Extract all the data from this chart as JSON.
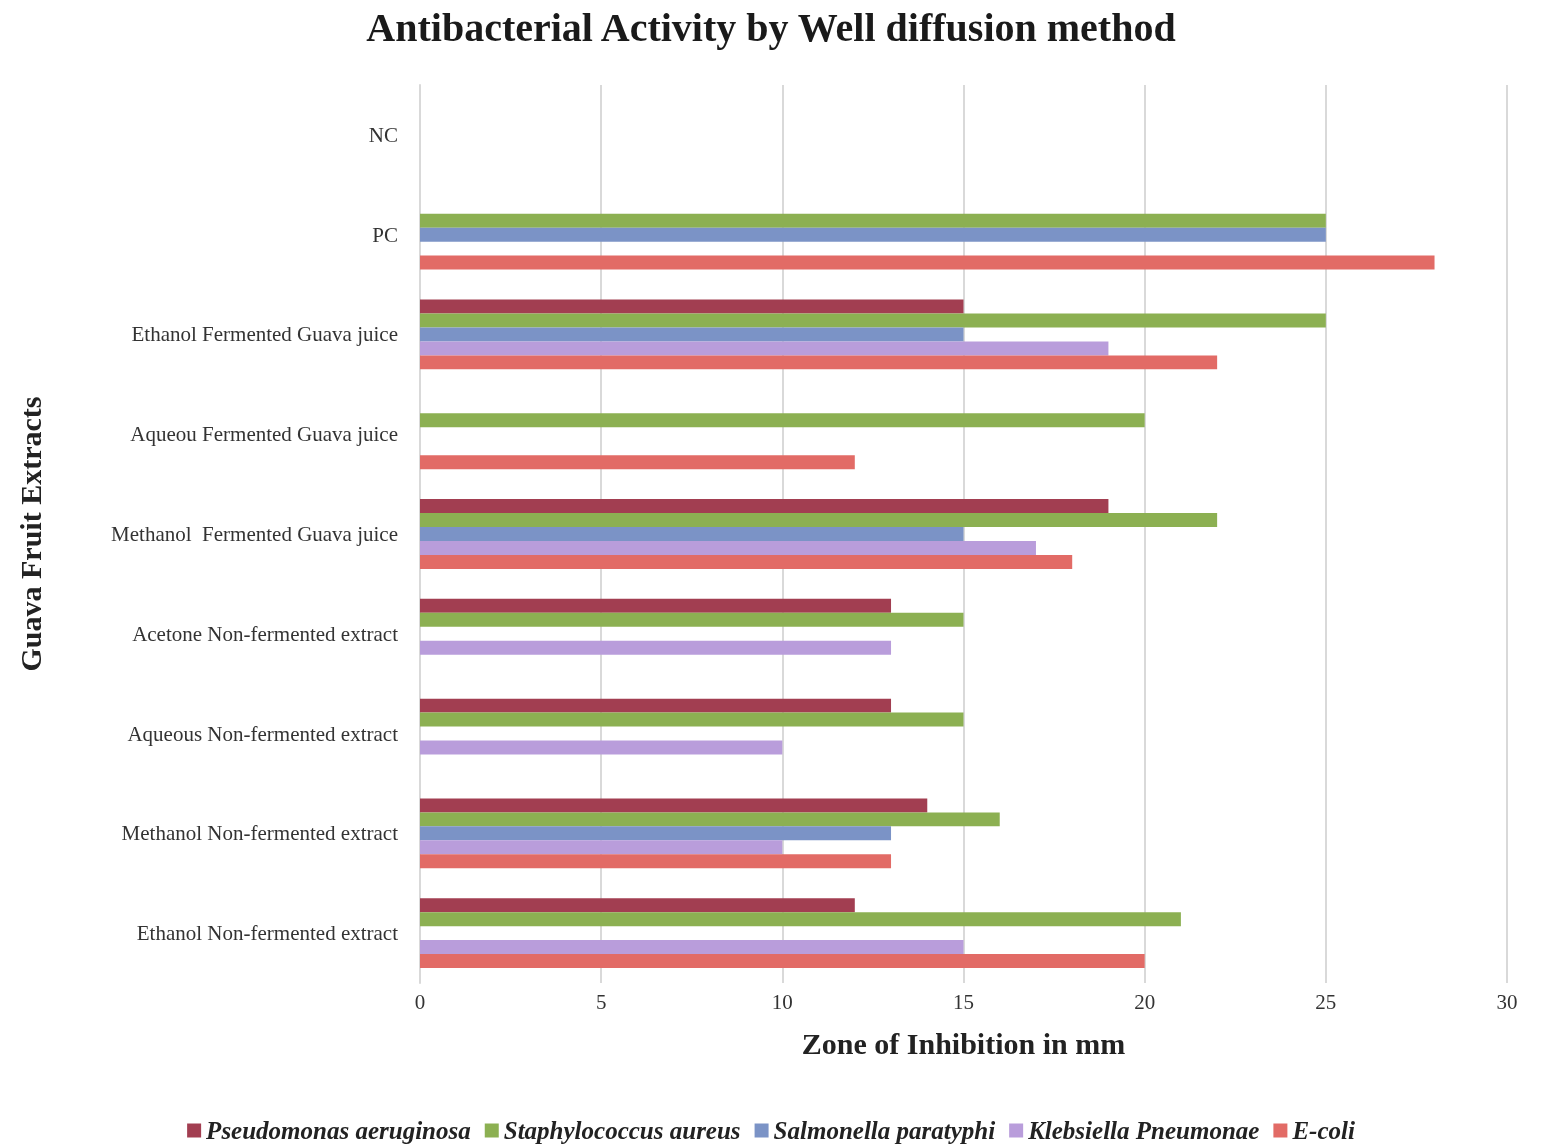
{
  "chart_data": {
    "type": "bar",
    "orientation": "horizontal",
    "title": "Antibacterial Activity by Well diffusion method",
    "xlabel": "Zone of Inhibition in mm",
    "ylabel": "Guava Fruit Extracts",
    "categories": [
      "NC",
      "PC",
      "Ethanol Fermented Guava juice",
      "Aqueou Fermented Guava juice",
      "Methanol  Fermented Guava juice",
      "Acetone Non-fermented extract",
      "Aqueous Non-fermented extract",
      "Methanol Non-fermented extract",
      "Ethanol Non-fermented extract"
    ],
    "series": [
      {
        "name": "Pseudomonas aeruginosa",
        "color": "#a23e51",
        "values": [
          null,
          null,
          15,
          null,
          19,
          13,
          13,
          14,
          12
        ]
      },
      {
        "name": "Staphylococcus aureus",
        "color": "#8cb052",
        "values": [
          null,
          25,
          25,
          20,
          22,
          15,
          15,
          16,
          21
        ]
      },
      {
        "name": "Salmonella paratyphi",
        "color": "#7b93c6",
        "values": [
          null,
          25,
          15,
          null,
          15,
          null,
          null,
          13,
          null
        ]
      },
      {
        "name": "Klebsiella Pneumonae",
        "color": "#b99ddb",
        "values": [
          null,
          null,
          19,
          null,
          17,
          13,
          10,
          10,
          15
        ]
      },
      {
        "name": "E-coli",
        "color": "#e26b66",
        "values": [
          null,
          28,
          22,
          12,
          18,
          null,
          null,
          13,
          20
        ]
      }
    ],
    "xlim": [
      0,
      30
    ],
    "xticks": [
      0,
      5,
      10,
      15,
      20,
      25,
      30
    ],
    "grid": "x",
    "legend": "bottom"
  }
}
